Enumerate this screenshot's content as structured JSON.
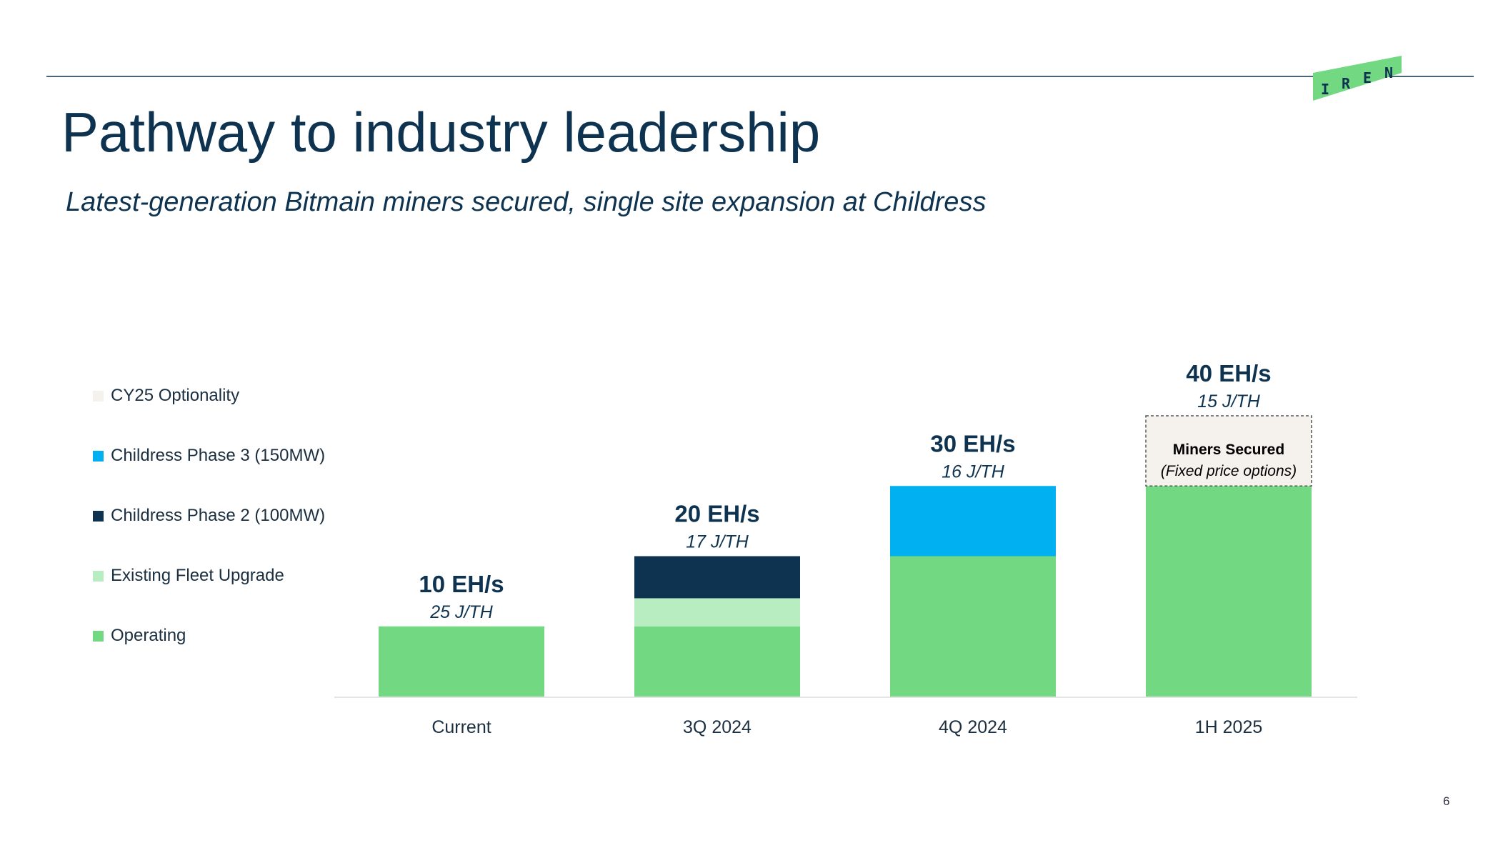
{
  "brand": {
    "logo_letters": [
      "I",
      "R",
      "E",
      "N"
    ],
    "logo_color": "#72d982",
    "primary_color": "#0e3350"
  },
  "title": "Pathway to industry leadership",
  "subtitle": "Latest-generation Bitmain miners secured, single site expansion at Childress",
  "legend": {
    "items": [
      {
        "label": "CY25 Optionality",
        "color": "#f5f1ec"
      },
      {
        "label": "Childress Phase 3 (150MW)",
        "color": "#00b0f0"
      },
      {
        "label": "Childress Phase 2 (100MW)",
        "color": "#0e3350"
      },
      {
        "label": "Existing Fleet Upgrade",
        "color": "#b8ecc1"
      },
      {
        "label": "Operating",
        "color": "#72d982"
      }
    ]
  },
  "chart_data": {
    "type": "bar",
    "stacked": true,
    "categories": [
      "Current",
      "3Q 2024",
      "4Q 2024",
      "1H 2025"
    ],
    "unit": "EH/s",
    "ylim": [
      0,
      40
    ],
    "grid": false,
    "legend_position": "left",
    "series": [
      {
        "name": "Operating",
        "color": "#72d982",
        "values": [
          10,
          10,
          20,
          30
        ]
      },
      {
        "name": "Existing Fleet Upgrade",
        "color": "#b8ecc1",
        "values": [
          0,
          4,
          0,
          0
        ]
      },
      {
        "name": "Childress Phase 2 (100MW)",
        "color": "#0e3350",
        "values": [
          0,
          6,
          0,
          0
        ]
      },
      {
        "name": "Childress Phase 3 (150MW)",
        "color": "#00b0f0",
        "values": [
          0,
          0,
          10,
          0
        ]
      },
      {
        "name": "CY25 Optionality",
        "color": "#f5f1ec",
        "values": [
          0,
          0,
          0,
          10
        ],
        "dashed": true
      }
    ],
    "total_labels": [
      "10 EH/s",
      "20 EH/s",
      "30 EH/s",
      "40 EH/s"
    ],
    "efficiency_labels": [
      "25 J/TH",
      "17 J/TH",
      "16 J/TH",
      "15 J/TH"
    ],
    "annotation": {
      "category": "1H 2025",
      "series": "CY25 Optionality",
      "title": "Miners Secured",
      "subtitle": "(Fixed price options)"
    }
  },
  "page_number": "6"
}
